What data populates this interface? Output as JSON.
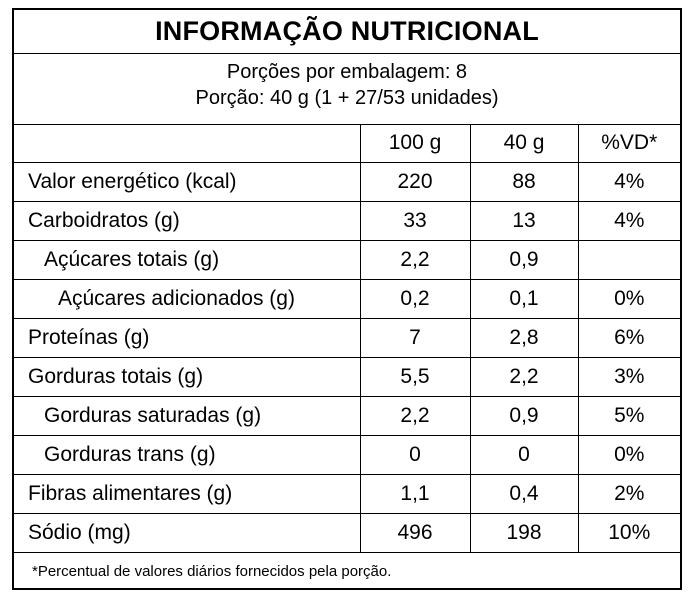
{
  "title": "INFORMAÇÃO NUTRICIONAL",
  "serving": {
    "line1": "Porções por embalagem: 8",
    "line2": "Porção: 40 g (1 + 27/53 unidades)"
  },
  "columns": [
    "",
    "100 g",
    "40 g",
    "%VD*"
  ],
  "rows": [
    {
      "name": "Valor energético (kcal)",
      "v100": "220",
      "vport": "88",
      "vd": "4%",
      "indent": 0
    },
    {
      "name": "Carboidratos (g)",
      "v100": "33",
      "vport": "13",
      "vd": "4%",
      "indent": 0
    },
    {
      "name": "Açúcares totais (g)",
      "v100": "2,2",
      "vport": "0,9",
      "vd": "",
      "indent": 1
    },
    {
      "name": "Açúcares adicionados (g)",
      "v100": "0,2",
      "vport": "0,1",
      "vd": "0%",
      "indent": 2
    },
    {
      "name": "Proteínas (g)",
      "v100": "7",
      "vport": "2,8",
      "vd": "6%",
      "indent": 0
    },
    {
      "name": "Gorduras totais (g)",
      "v100": "5,5",
      "vport": "2,2",
      "vd": "3%",
      "indent": 0
    },
    {
      "name": "Gorduras saturadas (g)",
      "v100": "2,2",
      "vport": "0,9",
      "vd": "5%",
      "indent": 1
    },
    {
      "name": "Gorduras trans (g)",
      "v100": "0",
      "vport": "0",
      "vd": "0%",
      "indent": 1
    },
    {
      "name": "Fibras alimentares (g)",
      "v100": "1,1",
      "vport": "0,4",
      "vd": "2%",
      "indent": 0
    },
    {
      "name": "Sódio (mg)",
      "v100": "496",
      "vport": "198",
      "vd": "10%",
      "indent": 0
    }
  ],
  "footnote": "*Percentual de valores diários fornecidos pela porção."
}
